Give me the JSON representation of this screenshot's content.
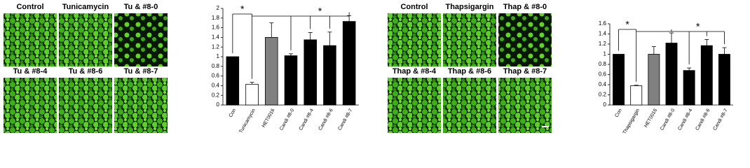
{
  "chart_data": [
    {
      "type": "bar",
      "categories": [
        "Con",
        "Tunicamycin",
        "HET0016",
        "Candi #8-0",
        "Candi #8-4",
        "Candi #8-6",
        "Candi #8-7"
      ],
      "values": [
        1.0,
        0.43,
        1.4,
        1.02,
        1.35,
        1.23,
        1.73
      ],
      "errors": [
        0,
        0.04,
        0.3,
        0.04,
        0.15,
        0.28,
        0.12
      ],
      "colors": [
        "#000000",
        "#ffffff",
        "#808080",
        "#000000",
        "#000000",
        "#000000",
        "#000000"
      ],
      "ylim": [
        0,
        2
      ],
      "yticks": [
        0,
        0.2,
        0.4,
        0.6,
        0.8,
        1,
        1.2,
        1.4,
        1.6,
        1.8,
        2
      ],
      "annotations": [
        "*",
        "*"
      ]
    },
    {
      "type": "bar",
      "categories": [
        "Con",
        "Thapsigargin",
        "HET0016",
        "Candi #8-0",
        "Candi #8-4",
        "Candi #8-6",
        "Candi #8-7"
      ],
      "values": [
        1.0,
        0.38,
        1.0,
        1.22,
        0.68,
        1.17,
        1.0
      ],
      "errors": [
        0,
        0.01,
        0.15,
        0.2,
        0.05,
        0.12,
        0.13
      ],
      "colors": [
        "#000000",
        "#ffffff",
        "#808080",
        "#000000",
        "#000000",
        "#000000",
        "#000000"
      ],
      "ylim": [
        0,
        1.6
      ],
      "yticks": [
        0,
        0.2,
        0.4,
        0.6,
        0.8,
        1,
        1.2,
        1.4,
        1.6
      ],
      "annotations": [
        "*",
        "*"
      ]
    }
  ],
  "image_panels": [
    {
      "labels": [
        "Control",
        "Tunicamycin",
        "Tu & #8-0",
        "Tu & #8-4",
        "Tu & #8-6",
        "Tu & #8-7"
      ]
    },
    {
      "labels": [
        "Control",
        "Thapsigargin",
        "Thap & #8-0",
        "Thap & #8-4",
        "Thap & #8-6",
        "Thap & #8-7"
      ]
    }
  ]
}
